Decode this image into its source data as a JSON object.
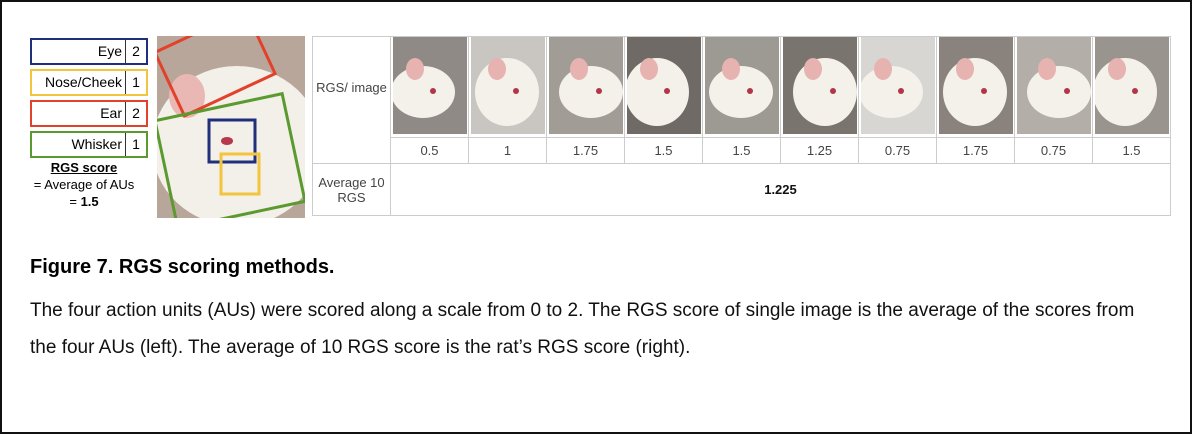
{
  "figure": {
    "action_units": [
      {
        "name": "Eye",
        "score": 2,
        "color": "#1f2f7a"
      },
      {
        "name": "Nose/Cheek",
        "score": 1,
        "color": "#f2c53d"
      },
      {
        "name": "Ear",
        "score": 2,
        "color": "#e2412b"
      },
      {
        "name": "Whisker",
        "score": 1,
        "color": "#5a9a2e"
      }
    ],
    "rgs_score": {
      "label": "RGS score",
      "formula": "= Average of AUs",
      "equals": "=",
      "value": 1.5
    },
    "table": {
      "image_row_label": "RGS/ image",
      "scores": [
        0.5,
        1,
        1.75,
        1.5,
        1.5,
        1.25,
        0.75,
        1.75,
        0.75,
        1.5
      ],
      "average_label": "Average 10 RGS",
      "average": 1.225
    },
    "caption": {
      "title": "Figure 7. RGS scoring methods.",
      "text": "The four action units (AUs) were scored along a scale from 0 to 2. The RGS score of single image is the average of the scores from the four AUs (left). The average of 10 RGS score is the rat’s RGS score (right)."
    }
  }
}
